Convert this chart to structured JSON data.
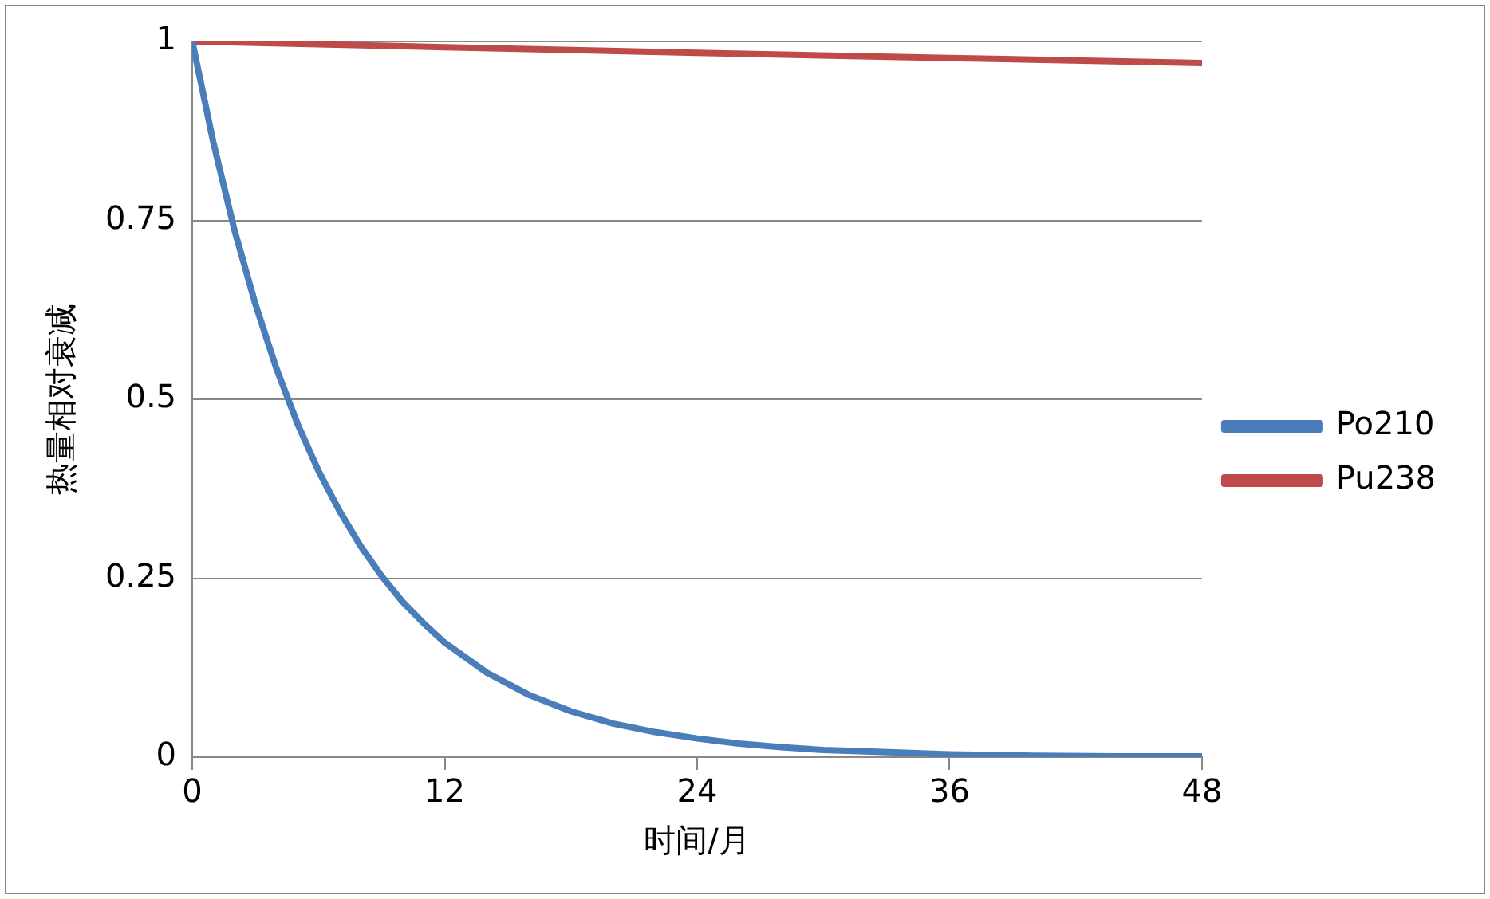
{
  "chart_data": {
    "type": "line",
    "xlabel": "时间/月",
    "ylabel": "热量相对衰减",
    "xlim": [
      0,
      48
    ],
    "xticks": [
      0,
      12,
      24,
      36,
      48
    ],
    "ylim": [
      0,
      1
    ],
    "yticks": [
      0,
      0.25,
      0.5,
      0.75,
      1
    ],
    "grid": "y",
    "legend": "right",
    "marker": "none",
    "line_style": "solid",
    "series": [
      {
        "name": "Po210",
        "color": "#4a7ebb",
        "x": [
          0,
          1,
          2,
          3,
          4,
          5,
          6,
          7,
          8,
          9,
          10,
          11,
          12,
          14,
          16,
          18,
          20,
          22,
          24,
          26,
          28,
          30,
          32,
          36,
          40,
          44,
          48
        ],
        "values": [
          1,
          0.859,
          0.737,
          0.633,
          0.543,
          0.466,
          0.4,
          0.344,
          0.295,
          0.253,
          0.217,
          0.187,
          0.16,
          0.118,
          0.087,
          0.064,
          0.047,
          0.035,
          0.026,
          0.019,
          0.014,
          0.01,
          0.008,
          0.004,
          0.002,
          0.001,
          0.001
        ]
      },
      {
        "name": "Pu238",
        "color": "#be4b48",
        "x": [
          0,
          12,
          24,
          36,
          48
        ],
        "values": [
          1,
          0.992,
          0.984,
          0.977,
          0.97
        ]
      }
    ]
  }
}
